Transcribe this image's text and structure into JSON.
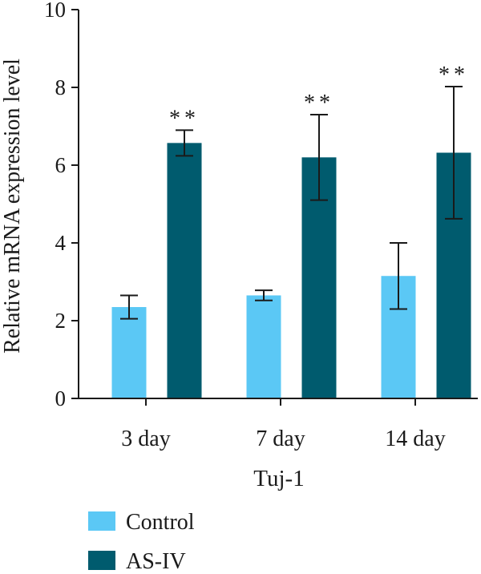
{
  "chart_data": {
    "type": "bar",
    "title": "",
    "xlabel": "Tuj-1",
    "ylabel": "Relative mRNA expression level",
    "ylim": [
      0,
      10
    ],
    "yticks": [
      0,
      2,
      4,
      6,
      8,
      10
    ],
    "grid": false,
    "legend_position": "bottom-left",
    "categories": [
      "3 day",
      "7 day",
      "14 day"
    ],
    "series": [
      {
        "name": "Control",
        "color": "#5bc8f5",
        "values": [
          2.35,
          2.65,
          3.15
        ],
        "errors": [
          0.3,
          0.13,
          0.85
        ],
        "significance": [
          "",
          "",
          ""
        ]
      },
      {
        "name": "AS-IV",
        "color": "#005b6e",
        "values": [
          6.57,
          6.2,
          6.32
        ],
        "errors": [
          0.33,
          1.1,
          1.7
        ],
        "significance": [
          "**",
          "**",
          "**"
        ]
      }
    ]
  }
}
